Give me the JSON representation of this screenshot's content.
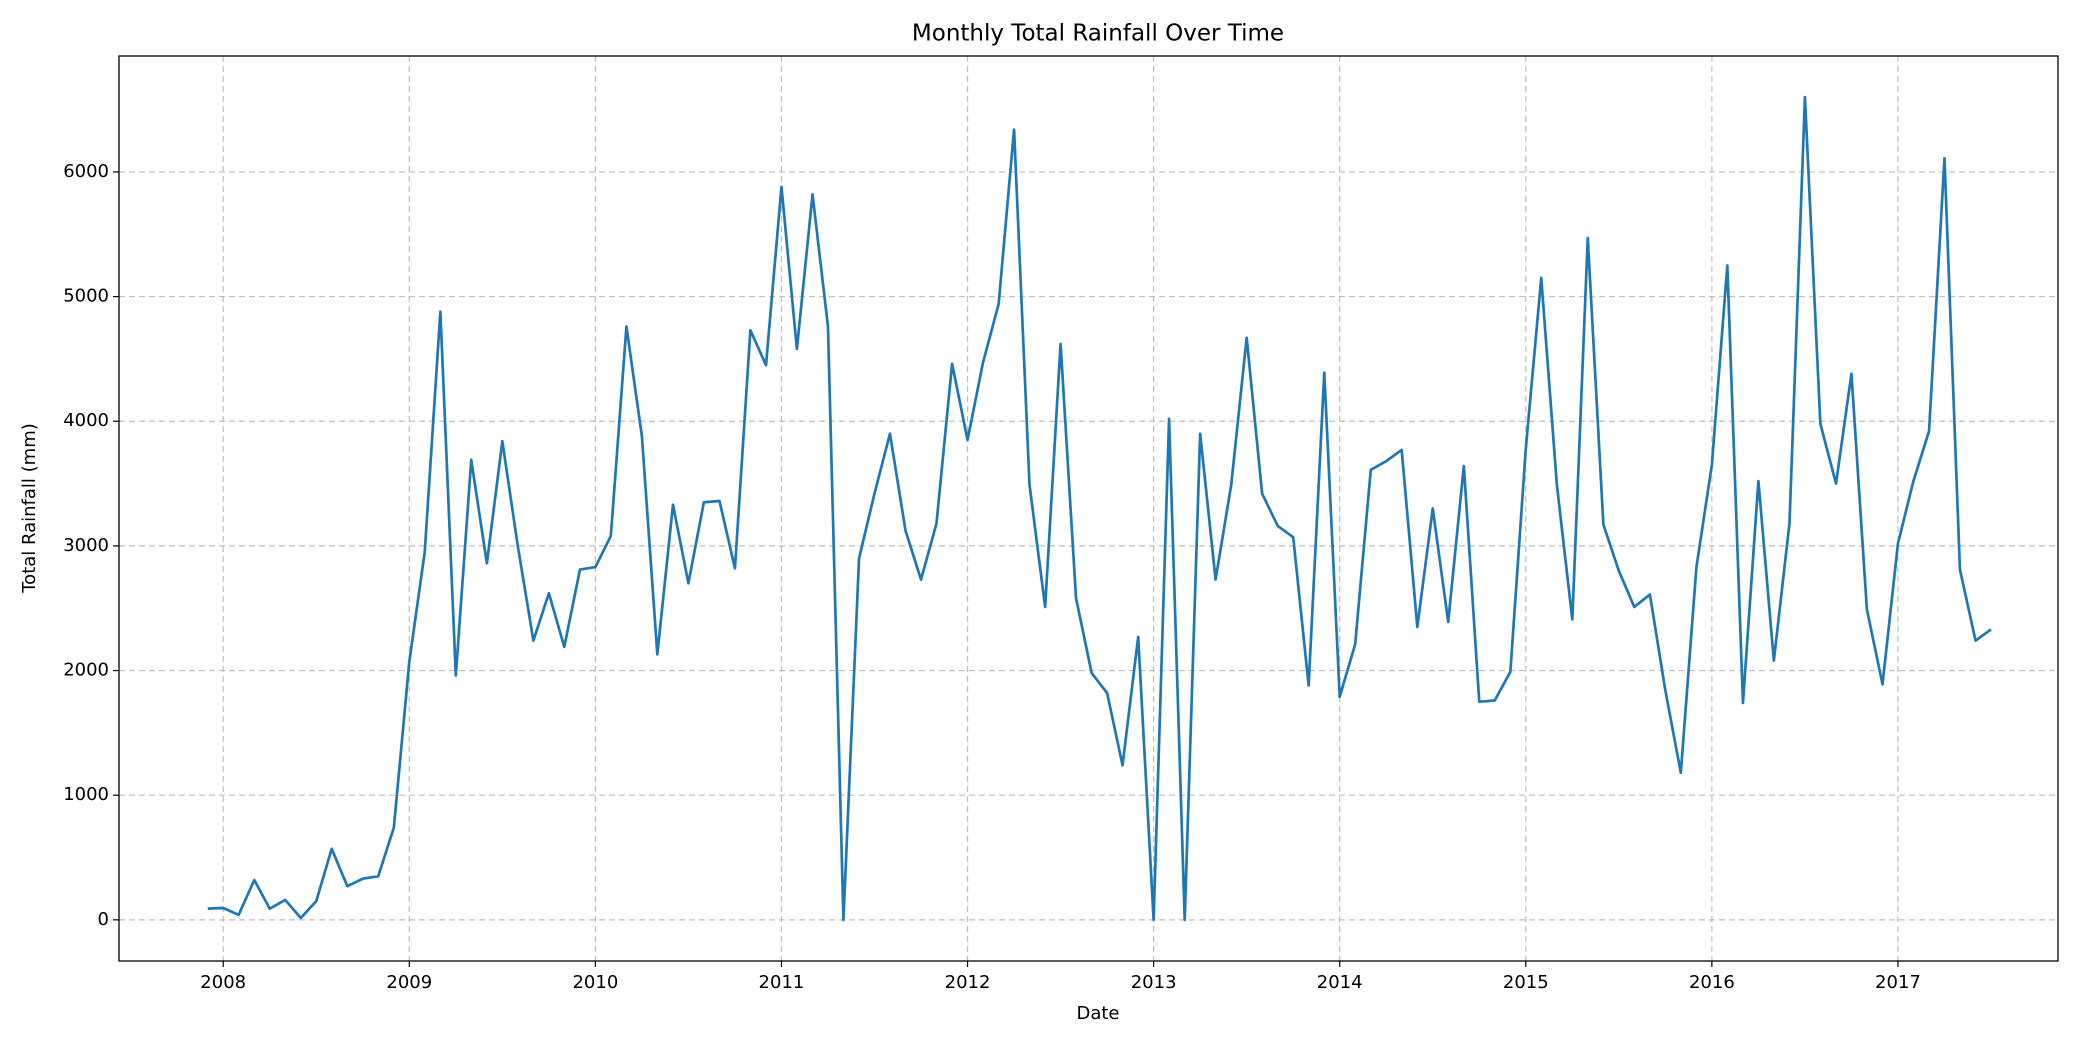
{
  "chart_data": {
    "type": "line",
    "title": "Monthly Total Rainfall Over Time",
    "x_label": "Date",
    "y_label": "Total Rainfall (mm)",
    "x": [
      2007.917,
      2008.0,
      2008.083,
      2008.167,
      2008.25,
      2008.333,
      2008.417,
      2008.5,
      2008.583,
      2008.667,
      2008.75,
      2008.833,
      2008.917,
      2009.0,
      2009.083,
      2009.167,
      2009.25,
      2009.333,
      2009.417,
      2009.5,
      2009.583,
      2009.667,
      2009.75,
      2009.833,
      2009.917,
      2010.0,
      2010.083,
      2010.167,
      2010.25,
      2010.333,
      2010.417,
      2010.5,
      2010.583,
      2010.667,
      2010.75,
      2010.833,
      2010.917,
      2011.0,
      2011.083,
      2011.167,
      2011.25,
      2011.333,
      2011.417,
      2011.5,
      2011.583,
      2011.667,
      2011.75,
      2011.833,
      2011.917,
      2012.0,
      2012.083,
      2012.167,
      2012.25,
      2012.333,
      2012.417,
      2012.5,
      2012.583,
      2012.667,
      2012.75,
      2012.833,
      2012.917,
      2013.0,
      2013.083,
      2013.167,
      2013.25,
      2013.333,
      2013.417,
      2013.5,
      2013.583,
      2013.667,
      2013.75,
      2013.833,
      2013.917,
      2014.0,
      2014.083,
      2014.167,
      2014.25,
      2014.333,
      2014.417,
      2014.5,
      2014.583,
      2014.667,
      2014.75,
      2014.833,
      2014.917,
      2015.0,
      2015.083,
      2015.167,
      2015.25,
      2015.333,
      2015.417,
      2015.5,
      2015.583,
      2015.667,
      2015.75,
      2015.833,
      2015.917,
      2016.0,
      2016.083,
      2016.167,
      2016.25,
      2016.333,
      2016.417,
      2016.5,
      2016.583,
      2016.667,
      2016.75,
      2016.833,
      2016.917,
      2017.0,
      2017.083,
      2017.167,
      2017.25,
      2017.333,
      2017.417,
      2017.5
    ],
    "series": [
      {
        "name": "Total Rainfall",
        "color": "#1f77b4",
        "values": [
          90,
          95,
          40,
          320,
          90,
          160,
          15,
          150,
          570,
          270,
          330,
          350,
          740,
          2070,
          2950,
          4880,
          1960,
          3690,
          2860,
          3840,
          3000,
          2240,
          2620,
          2190,
          2810,
          2830,
          3080,
          4760,
          3880,
          2130,
          3330,
          2700,
          3350,
          3360,
          2820,
          4730,
          4450,
          5880,
          4580,
          5820,
          4760,
          0,
          2900,
          3420,
          3900,
          3120,
          2730,
          3180,
          4460,
          3850,
          4470,
          4940,
          6340,
          3490,
          2510,
          4620,
          2580,
          1980,
          1820,
          1240,
          2270,
          0,
          4020,
          0,
          3900,
          2730,
          3490,
          4670,
          3420,
          3160,
          3070,
          1880,
          4390,
          1790,
          2210,
          3610,
          3680,
          3770,
          2350,
          3300,
          2390,
          3640,
          1750,
          1760,
          1990,
          3780,
          5150,
          3490,
          2410,
          5470,
          3170,
          2800,
          2510,
          2610,
          1840,
          1180,
          2830,
          3650,
          5250,
          1740,
          3520,
          2080,
          3180,
          6600,
          3980,
          3500,
          4380,
          2490,
          1890,
          3020,
          3520,
          3920,
          6110,
          2810,
          2240,
          2330
        ]
      }
    ],
    "xlim": [
      2007.44,
      2017.86
    ],
    "xticks": [
      2008,
      2009,
      2010,
      2011,
      2012,
      2013,
      2014,
      2015,
      2016,
      2017
    ],
    "ylim": [
      -330,
      6930
    ],
    "yticks": [
      0,
      1000,
      2000,
      3000,
      4000,
      5000,
      6000
    ],
    "grid": true
  }
}
